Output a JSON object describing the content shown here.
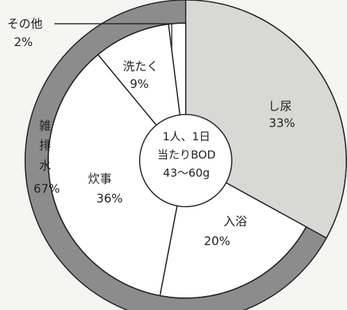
{
  "chart_data": {
    "type": "pie",
    "center_text": [
      "1人、1日",
      "当たりBOD",
      "43～60g"
    ],
    "slices": [
      {
        "label": "し尿",
        "value": 33,
        "value_label": "33%",
        "color": "#d8d8d6"
      },
      {
        "label": "入浴",
        "value": 20,
        "value_label": "20%",
        "color": "#ffffff"
      },
      {
        "label": "炊事",
        "value": 36,
        "value_label": "36%",
        "color": "#ffffff"
      },
      {
        "label": "洗たく",
        "value": 9,
        "value_label": "9%",
        "color": "#ffffff"
      },
      {
        "label": "その他",
        "value": 2,
        "value_label": "2%",
        "color": "#ffffff"
      }
    ],
    "outer_ring": {
      "label_chars": [
        "雑",
        "排",
        "水"
      ],
      "label": "雑排水",
      "value": 67,
      "value_label": "67%",
      "color": "#8c8c8c"
    }
  }
}
